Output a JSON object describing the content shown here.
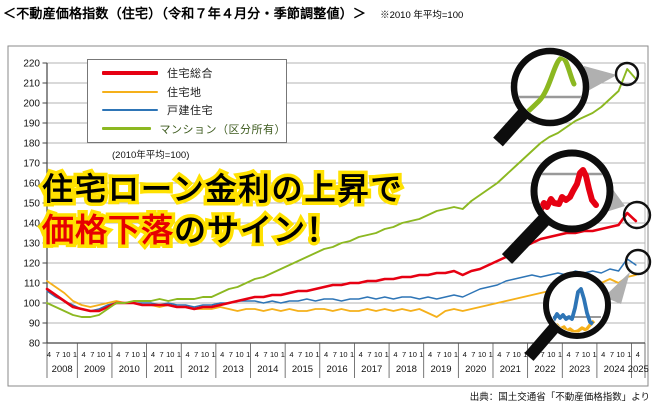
{
  "title": "＜不動産価格指数（住宅）（令和７年４月分・季節調整値）＞",
  "title_note": "※2010 年平均=100",
  "source": "出典：国土交通省「不動産価格指数」より",
  "overlay": {
    "line1": "住宅ローン金利の上昇で",
    "line2_full": "価格下落のサイン！",
    "line2_highlight": "価格下落",
    "line2_rest": "のサイン！"
  },
  "legend": {
    "note": "(2010年平均=100)"
  },
  "chart_data": {
    "type": "line",
    "title": "不動産価格指数（住宅）令和7年4月分・季節調整値",
    "ylabel": "指数（2010年平均=100）",
    "ylim": [
      80,
      220
    ],
    "ytick_step": 10,
    "grid": true,
    "legend_position": "top-left inside",
    "x_axis": {
      "start": "2008-04",
      "end": "2025-04",
      "interval_months": 3,
      "month_ticks_per_year": [
        "4",
        "7",
        "10",
        "1"
      ],
      "last_year_ticks": [
        "4"
      ],
      "years": [
        "2008",
        "2009",
        "2010",
        "2011",
        "2012",
        "2013",
        "2014",
        "2015",
        "2016",
        "2017",
        "2018",
        "2019",
        "2020",
        "2021",
        "2022",
        "2023",
        "2024",
        "2025"
      ]
    },
    "series": [
      {
        "id": "sogo",
        "name": "住宅総合",
        "color": "#e60012",
        "line_width": 2.6,
        "label_color": "#1a1a1a",
        "values": [
          107,
          104,
          101,
          98,
          97,
          96,
          96,
          98,
          100,
          100,
          100,
          99,
          99,
          99,
          99,
          98,
          98,
          97,
          98,
          98,
          99,
          100,
          101,
          102,
          103,
          103,
          104,
          104,
          105,
          106,
          106,
          107,
          108,
          109,
          109,
          110,
          110,
          111,
          111,
          112,
          112,
          113,
          113,
          114,
          114,
          115,
          115,
          116,
          114,
          116,
          117,
          119,
          121,
          123,
          125,
          128,
          130,
          132,
          133,
          134,
          135,
          135,
          136,
          136,
          137,
          138,
          139,
          145,
          141
        ]
      },
      {
        "id": "land",
        "name": "住宅地",
        "color": "#f5b01a",
        "line_width": 1.8,
        "label_color": "#1a1a1a",
        "values": [
          111,
          108,
          105,
          101,
          99,
          98,
          99,
          100,
          101,
          100,
          100,
          99,
          99,
          98,
          99,
          98,
          98,
          97,
          97,
          97,
          98,
          97,
          96,
          97,
          97,
          96,
          97,
          96,
          97,
          96,
          96,
          97,
          97,
          96,
          97,
          96,
          96,
          97,
          96,
          97,
          96,
          97,
          96,
          97,
          95,
          93,
          96,
          97,
          96,
          97,
          98,
          99,
          100,
          101,
          102,
          103,
          104,
          105,
          106,
          106,
          107,
          108,
          108,
          109,
          110,
          112,
          110,
          113,
          114
        ]
      },
      {
        "id": "kodate",
        "name": "戸建住宅",
        "color": "#2e75b6",
        "line_width": 1.5,
        "label_color": "#1a1a1a",
        "values": [
          106,
          103,
          101,
          99,
          97,
          96,
          97,
          99,
          100,
          100,
          100,
          100,
          100,
          99,
          100,
          99,
          99,
          98,
          99,
          99,
          100,
          100,
          101,
          101,
          101,
          100,
          101,
          100,
          101,
          101,
          102,
          101,
          102,
          102,
          101,
          102,
          102,
          103,
          102,
          103,
          102,
          103,
          103,
          102,
          103,
          102,
          103,
          104,
          103,
          105,
          107,
          108,
          109,
          111,
          112,
          113,
          114,
          113,
          114,
          115,
          114,
          116,
          115,
          116,
          115,
          117,
          116,
          122,
          119
        ]
      },
      {
        "id": "mansion",
        "name": "マンション（区分所有）",
        "color": "#8cb821",
        "line_width": 1.9,
        "label_color": "#3c5a1d",
        "values": [
          100,
          98,
          96,
          94,
          93,
          93,
          94,
          97,
          100,
          100,
          101,
          101,
          101,
          102,
          101,
          102,
          102,
          102,
          103,
          103,
          105,
          107,
          108,
          110,
          112,
          113,
          115,
          117,
          119,
          121,
          123,
          125,
          127,
          128,
          130,
          131,
          133,
          134,
          135,
          137,
          138,
          140,
          141,
          142,
          144,
          146,
          147,
          148,
          147,
          151,
          154,
          157,
          160,
          164,
          168,
          172,
          176,
          180,
          183,
          185,
          188,
          191,
          193,
          195,
          198,
          202,
          206,
          217,
          212
        ]
      }
    ],
    "annotations": {
      "magnifier_highlights": [
        {
          "series": "マンション（区分所有）",
          "note": "直近ピーク約217から約212へ下落"
        },
        {
          "series": "住宅総合",
          "note": "直近ピーク約145から約141へ下落"
        },
        {
          "series": "戸建住宅",
          "note": "直近スパイク約122から下落"
        }
      ]
    }
  }
}
